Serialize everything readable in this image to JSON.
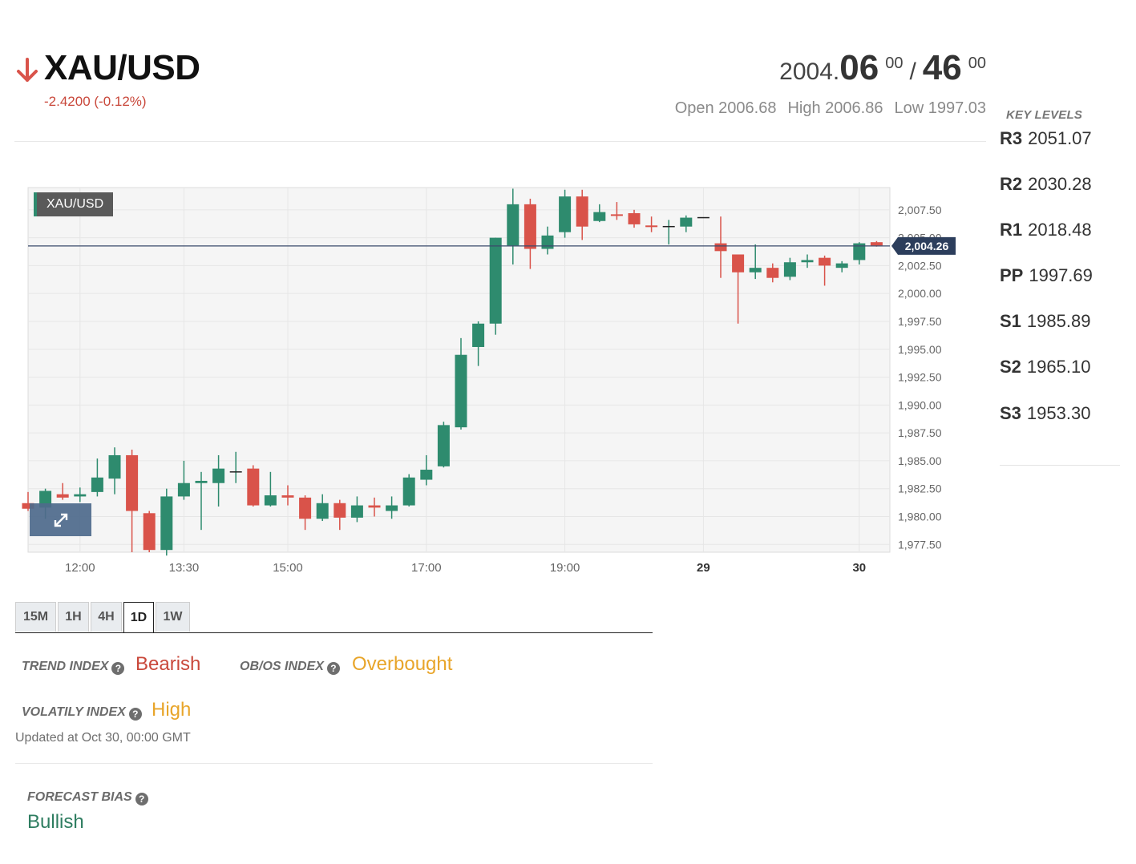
{
  "header": {
    "symbol": "XAU/USD",
    "change": "-2.4200 (-0.12%)",
    "trend_arrow_icon": "arrow-down-icon",
    "price": {
      "prefix": "2004.",
      "bid_big": "06",
      "bid_sup": "00",
      "separator": "/",
      "ask_big": "46",
      "ask_sup": "00"
    },
    "ohl": {
      "open": "Open 2006.68",
      "high": "High 2006.86",
      "low": "Low 1997.03"
    }
  },
  "key_levels": {
    "title": "KEY LEVELS",
    "items": [
      {
        "name": "R3",
        "value": "2051.07"
      },
      {
        "name": "R2",
        "value": "2030.28"
      },
      {
        "name": "R1",
        "value": "2018.48"
      },
      {
        "name": "PP",
        "value": "1997.69"
      },
      {
        "name": "S1",
        "value": "1985.89"
      },
      {
        "name": "S2",
        "value": "1965.10"
      },
      {
        "name": "S3",
        "value": "1953.30"
      }
    ]
  },
  "chart_label": "XAU/USD",
  "expand_icon": "expand-icon",
  "chart_data": {
    "type": "candlestick",
    "last_price_label": "2,004.26",
    "last_price": 2004.26,
    "ylim": [
      1976.8,
      2009.5
    ],
    "y_ticks": [
      {
        "v": 2007.5,
        "label": "2,007.50"
      },
      {
        "v": 2005.0,
        "label": "2,005.00"
      },
      {
        "v": 2002.5,
        "label": "2,002.50"
      },
      {
        "v": 2000.0,
        "label": "2,000.00"
      },
      {
        "v": 1997.5,
        "label": "1,997.50"
      },
      {
        "v": 1995.0,
        "label": "1,995.00"
      },
      {
        "v": 1992.5,
        "label": "1,992.50"
      },
      {
        "v": 1990.0,
        "label": "1,990.00"
      },
      {
        "v": 1987.5,
        "label": "1,987.50"
      },
      {
        "v": 1985.0,
        "label": "1,985.00"
      },
      {
        "v": 1982.5,
        "label": "1,982.50"
      },
      {
        "v": 1980.0,
        "label": "1,980.00"
      },
      {
        "v": 1977.5,
        "label": "1,977.50"
      }
    ],
    "x_ticks": [
      {
        "i": 3,
        "label": "12:00",
        "bold": false
      },
      {
        "i": 9,
        "label": "13:30",
        "bold": false
      },
      {
        "i": 15,
        "label": "15:00",
        "bold": false
      },
      {
        "i": 23,
        "label": "17:00",
        "bold": false
      },
      {
        "i": 31,
        "label": "19:00",
        "bold": false
      },
      {
        "i": 39,
        "label": "29",
        "bold": true
      },
      {
        "i": 48,
        "label": "30",
        "bold": true
      }
    ],
    "candles": [
      {
        "o": 1981.2,
        "h": 1982.2,
        "l": 1980.5,
        "c": 1980.7
      },
      {
        "o": 1980.8,
        "h": 1982.5,
        "l": 1979.8,
        "c": 1982.3
      },
      {
        "o": 1982.0,
        "h": 1983.0,
        "l": 1981.5,
        "c": 1981.7
      },
      {
        "o": 1981.8,
        "h": 1982.6,
        "l": 1981.3,
        "c": 1982.0
      },
      {
        "o": 1982.2,
        "h": 1985.2,
        "l": 1981.8,
        "c": 1983.5
      },
      {
        "o": 1983.4,
        "h": 1986.2,
        "l": 1982.0,
        "c": 1985.5
      },
      {
        "o": 1985.5,
        "h": 1986.0,
        "l": 1976.8,
        "c": 1980.5
      },
      {
        "o": 1980.3,
        "h": 1980.5,
        "l": 1976.8,
        "c": 1977.0
      },
      {
        "o": 1977.0,
        "h": 1982.5,
        "l": 1976.5,
        "c": 1981.8
      },
      {
        "o": 1981.8,
        "h": 1985.0,
        "l": 1981.5,
        "c": 1983.0
      },
      {
        "o": 1983.0,
        "h": 1984.0,
        "l": 1978.8,
        "c": 1983.2
      },
      {
        "o": 1983.0,
        "h": 1985.5,
        "l": 1980.9,
        "c": 1984.3
      },
      {
        "o": 1984.0,
        "h": 1985.8,
        "l": 1983.0,
        "c": 1984.0
      },
      {
        "o": 1984.3,
        "h": 1984.6,
        "l": 1980.9,
        "c": 1981.0
      },
      {
        "o": 1981.0,
        "h": 1984.0,
        "l": 1980.9,
        "c": 1981.9
      },
      {
        "o": 1981.9,
        "h": 1982.8,
        "l": 1981.0,
        "c": 1981.7
      },
      {
        "o": 1981.7,
        "h": 1981.9,
        "l": 1978.8,
        "c": 1979.8
      },
      {
        "o": 1979.8,
        "h": 1982.0,
        "l": 1979.6,
        "c": 1981.2
      },
      {
        "o": 1981.2,
        "h": 1981.5,
        "l": 1978.8,
        "c": 1979.9
      },
      {
        "o": 1979.9,
        "h": 1981.8,
        "l": 1979.5,
        "c": 1981.0
      },
      {
        "o": 1981.0,
        "h": 1981.7,
        "l": 1980.0,
        "c": 1980.8
      },
      {
        "o": 1980.5,
        "h": 1981.8,
        "l": 1979.8,
        "c": 1981.0
      },
      {
        "o": 1981.0,
        "h": 1983.8,
        "l": 1980.9,
        "c": 1983.5
      },
      {
        "o": 1983.3,
        "h": 1985.5,
        "l": 1982.8,
        "c": 1984.2
      },
      {
        "o": 1984.5,
        "h": 1988.5,
        "l": 1984.4,
        "c": 1988.2
      },
      {
        "o": 1988.0,
        "h": 1996.0,
        "l": 1987.8,
        "c": 1994.5
      },
      {
        "o": 1995.2,
        "h": 1997.5,
        "l": 1993.5,
        "c": 1997.3
      },
      {
        "o": 1997.3,
        "h": 2005.0,
        "l": 1996.3,
        "c": 2005.0
      },
      {
        "o": 2004.3,
        "h": 2009.4,
        "l": 2002.6,
        "c": 2008.0
      },
      {
        "o": 2008.0,
        "h": 2008.5,
        "l": 2002.2,
        "c": 2004.0
      },
      {
        "o": 2004.0,
        "h": 2006.0,
        "l": 2003.5,
        "c": 2005.2
      },
      {
        "o": 2005.5,
        "h": 2009.3,
        "l": 2005.0,
        "c": 2008.7
      },
      {
        "o": 2008.7,
        "h": 2009.3,
        "l": 2004.8,
        "c": 2006.0
      },
      {
        "o": 2006.5,
        "h": 2008.0,
        "l": 2006.4,
        "c": 2007.3
      },
      {
        "o": 2007.1,
        "h": 2008.2,
        "l": 2006.6,
        "c": 2007.0
      },
      {
        "o": 2007.2,
        "h": 2007.5,
        "l": 2005.9,
        "c": 2006.2
      },
      {
        "o": 2006.1,
        "h": 2006.9,
        "l": 2005.5,
        "c": 2006.0
      },
      {
        "o": 2006.0,
        "h": 2006.6,
        "l": 2004.4,
        "c": 2006.0
      },
      {
        "o": 2006.0,
        "h": 2007.0,
        "l": 2005.5,
        "c": 2006.8
      },
      {
        "o": 2006.8,
        "h": 2006.8,
        "l": 2006.8,
        "c": 2006.8
      },
      {
        "o": 2004.5,
        "h": 2006.9,
        "l": 2001.4,
        "c": 2003.8
      },
      {
        "o": 2003.5,
        "h": 2003.5,
        "l": 1997.3,
        "c": 2001.9
      },
      {
        "o": 2001.9,
        "h": 2004.4,
        "l": 2001.3,
        "c": 2002.3
      },
      {
        "o": 2002.3,
        "h": 2002.7,
        "l": 2001.0,
        "c": 2001.4
      },
      {
        "o": 2001.5,
        "h": 2003.2,
        "l": 2001.2,
        "c": 2002.8
      },
      {
        "o": 2002.8,
        "h": 2003.5,
        "l": 2002.3,
        "c": 2003.0
      },
      {
        "o": 2003.2,
        "h": 2003.4,
        "l": 2000.7,
        "c": 2002.5
      },
      {
        "o": 2002.3,
        "h": 2002.9,
        "l": 2001.9,
        "c": 2002.7
      },
      {
        "o": 2003.0,
        "h": 2004.6,
        "l": 2002.6,
        "c": 2004.5
      },
      {
        "o": 2004.6,
        "h": 2004.7,
        "l": 2004.2,
        "c": 2004.3
      }
    ]
  },
  "timeframes": [
    {
      "label": "15M",
      "active": false
    },
    {
      "label": "1H",
      "active": false
    },
    {
      "label": "4H",
      "active": false
    },
    {
      "label": "1D",
      "active": true
    },
    {
      "label": "1W",
      "active": false
    }
  ],
  "indicators": {
    "trend": {
      "label": "TREND INDEX",
      "value": "Bearish",
      "color": "#c9483b"
    },
    "obos": {
      "label": "OB/OS INDEX",
      "value": "Overbought",
      "color": "#e8a52a"
    },
    "volatility": {
      "label": "VOLATILY INDEX",
      "value": "High",
      "color": "#e8a52a"
    },
    "updated": "Updated at Oct 30, 00:00 GMT",
    "help_icon": "help-icon"
  },
  "forecast": {
    "label": "FORECAST BIAS",
    "value": "Bullish",
    "color": "#2e7d60"
  },
  "colors": {
    "bull": "#2e8b6e",
    "bear": "#d9534a",
    "price_line": "#3a4a6b",
    "price_badge": "#2c3e5c"
  }
}
